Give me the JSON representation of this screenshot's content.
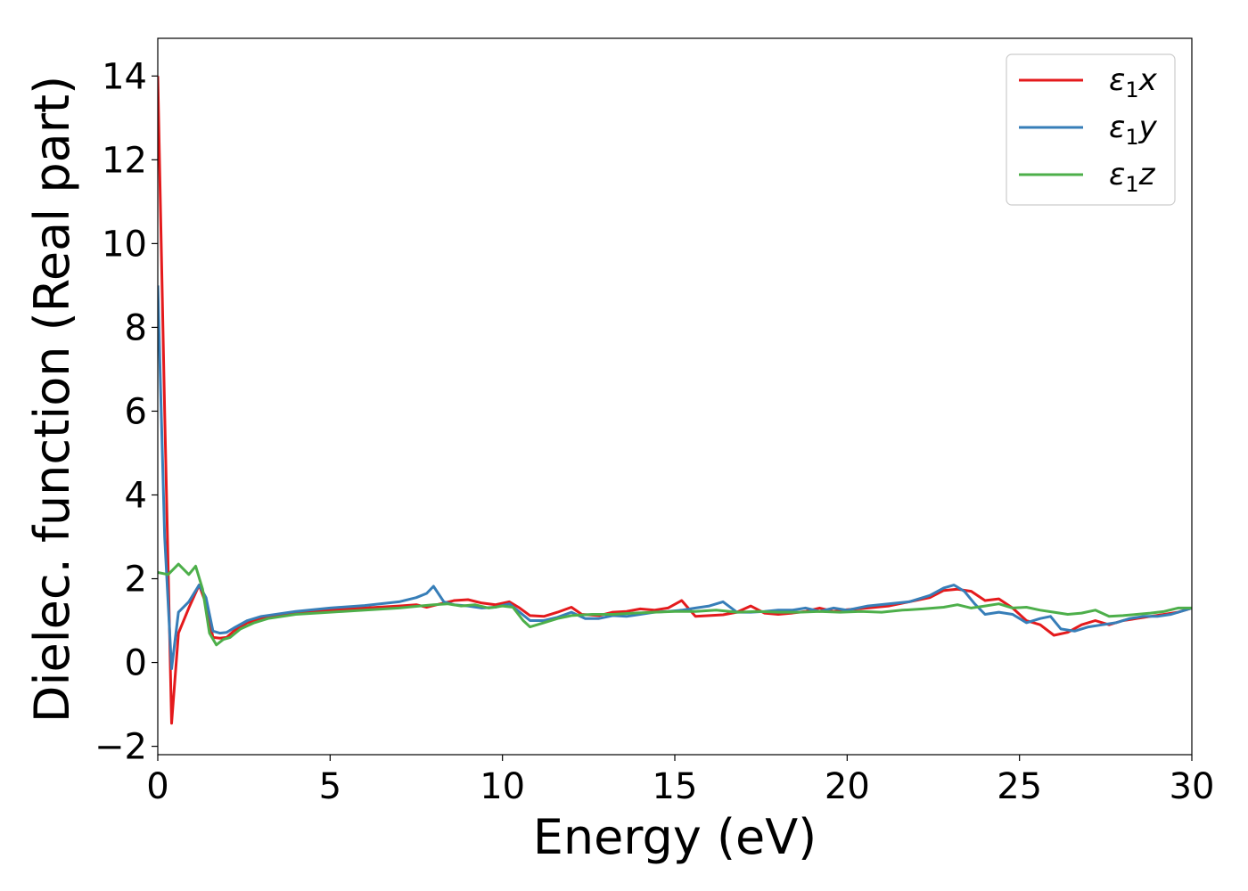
{
  "chart_data": {
    "type": "line",
    "xlabel": "Energy (eV)",
    "ylabel": "Dielec. function (Real part)",
    "xlim": [
      0,
      30
    ],
    "ylim": [
      -2.2,
      14.9
    ],
    "xticks": [
      0,
      5,
      10,
      15,
      20,
      25,
      30
    ],
    "yticks": [
      -2,
      0,
      2,
      4,
      6,
      8,
      10,
      12,
      14
    ],
    "grid": false,
    "legend_position": "top-right",
    "series": [
      {
        "name": "ε1x",
        "legend": {
          "symbol": "ε",
          "subscript": "1",
          "axis": "x"
        },
        "color": "#e41a1c",
        "x": [
          0,
          0.2,
          0.4,
          0.6,
          0.9,
          1.2,
          1.4,
          1.6,
          1.8,
          2.0,
          2.2,
          2.6,
          3.0,
          4.0,
          5.0,
          6.0,
          7.0,
          7.5,
          7.8,
          8.2,
          8.6,
          9.0,
          9.4,
          9.8,
          10.2,
          10.5,
          10.8,
          11.2,
          11.6,
          12.0,
          12.3,
          12.8,
          13.2,
          13.6,
          14.0,
          14.4,
          14.8,
          15.2,
          15.6,
          16.0,
          16.4,
          16.8,
          17.2,
          17.6,
          18.0,
          18.4,
          18.8,
          19.2,
          19.6,
          20.0,
          20.6,
          21.2,
          21.8,
          22.4,
          22.8,
          23.2,
          23.6,
          24.0,
          24.4,
          24.8,
          25.2,
          25.6,
          26.0,
          26.4,
          26.8,
          27.2,
          27.6,
          28.0,
          28.4,
          28.8,
          29.2,
          29.6,
          30.0
        ],
        "y": [
          14.0,
          6.0,
          -1.45,
          0.7,
          1.3,
          1.85,
          1.4,
          0.6,
          0.58,
          0.6,
          0.75,
          0.95,
          1.05,
          1.18,
          1.25,
          1.3,
          1.35,
          1.38,
          1.32,
          1.4,
          1.48,
          1.5,
          1.42,
          1.38,
          1.45,
          1.3,
          1.12,
          1.1,
          1.2,
          1.32,
          1.15,
          1.12,
          1.2,
          1.22,
          1.28,
          1.25,
          1.3,
          1.48,
          1.1,
          1.12,
          1.14,
          1.2,
          1.35,
          1.18,
          1.15,
          1.18,
          1.22,
          1.3,
          1.22,
          1.26,
          1.3,
          1.35,
          1.45,
          1.55,
          1.72,
          1.75,
          1.7,
          1.48,
          1.52,
          1.3,
          1.0,
          0.9,
          0.65,
          0.72,
          0.9,
          1.0,
          0.9,
          1.0,
          1.05,
          1.1,
          1.15,
          1.2,
          1.3
        ]
      },
      {
        "name": "ε1y",
        "legend": {
          "symbol": "ε",
          "subscript": "1",
          "axis": "y"
        },
        "color": "#377eb8",
        "x": [
          0,
          0.2,
          0.4,
          0.6,
          0.9,
          1.2,
          1.4,
          1.6,
          1.8,
          2.0,
          2.2,
          2.6,
          3.0,
          4.0,
          5.0,
          6.0,
          7.0,
          7.5,
          7.8,
          8.0,
          8.3,
          8.6,
          9.0,
          9.4,
          9.8,
          10.2,
          10.5,
          10.8,
          11.2,
          11.6,
          12.0,
          12.4,
          12.8,
          13.2,
          13.6,
          14.0,
          14.4,
          14.8,
          15.2,
          15.6,
          16.0,
          16.4,
          16.8,
          17.2,
          17.6,
          18.0,
          18.4,
          18.8,
          19.2,
          19.6,
          20.0,
          20.6,
          21.2,
          21.8,
          22.4,
          22.8,
          23.1,
          23.4,
          23.7,
          24.0,
          24.4,
          24.8,
          25.2,
          25.6,
          25.9,
          26.2,
          26.6,
          27.0,
          27.4,
          27.8,
          28.2,
          28.6,
          29.0,
          29.4,
          29.8,
          30.0
        ],
        "y": [
          9.0,
          3.0,
          -0.15,
          1.2,
          1.45,
          1.85,
          1.55,
          0.75,
          0.7,
          0.72,
          0.82,
          1.0,
          1.1,
          1.22,
          1.3,
          1.36,
          1.45,
          1.55,
          1.65,
          1.82,
          1.45,
          1.38,
          1.35,
          1.3,
          1.32,
          1.4,
          1.2,
          1.0,
          1.0,
          1.08,
          1.2,
          1.05,
          1.05,
          1.12,
          1.1,
          1.15,
          1.2,
          1.22,
          1.25,
          1.3,
          1.35,
          1.45,
          1.2,
          1.2,
          1.22,
          1.25,
          1.25,
          1.3,
          1.22,
          1.3,
          1.25,
          1.35,
          1.4,
          1.45,
          1.6,
          1.78,
          1.85,
          1.7,
          1.4,
          1.15,
          1.2,
          1.15,
          0.95,
          1.05,
          1.1,
          0.8,
          0.75,
          0.85,
          0.9,
          0.95,
          1.05,
          1.1,
          1.1,
          1.15,
          1.25,
          1.3
        ]
      },
      {
        "name": "ε1z",
        "legend": {
          "symbol": "ε",
          "subscript": "1",
          "axis": "z"
        },
        "color": "#4daf4a",
        "x": [
          0,
          0.3,
          0.6,
          0.9,
          1.1,
          1.3,
          1.5,
          1.7,
          1.9,
          2.1,
          2.4,
          2.8,
          3.2,
          4.0,
          5.0,
          6.0,
          7.0,
          7.6,
          8.0,
          8.4,
          8.8,
          9.2,
          9.6,
          10.0,
          10.3,
          10.6,
          10.8,
          11.2,
          11.6,
          12.0,
          12.6,
          13.2,
          13.8,
          14.4,
          15.0,
          15.6,
          16.2,
          16.8,
          17.4,
          18.0,
          18.6,
          19.2,
          19.8,
          20.4,
          21.0,
          21.6,
          22.2,
          22.8,
          23.2,
          23.6,
          24.0,
          24.4,
          24.8,
          25.2,
          25.6,
          26.0,
          26.4,
          26.8,
          27.2,
          27.6,
          28.0,
          28.4,
          28.8,
          29.2,
          29.6,
          30.0
        ],
        "y": [
          2.15,
          2.1,
          2.35,
          2.1,
          2.3,
          1.75,
          0.7,
          0.42,
          0.55,
          0.6,
          0.8,
          0.95,
          1.05,
          1.15,
          1.2,
          1.25,
          1.3,
          1.35,
          1.38,
          1.4,
          1.35,
          1.38,
          1.3,
          1.35,
          1.32,
          1.0,
          0.85,
          0.95,
          1.05,
          1.12,
          1.15,
          1.15,
          1.18,
          1.2,
          1.22,
          1.22,
          1.25,
          1.2,
          1.22,
          1.2,
          1.2,
          1.22,
          1.2,
          1.22,
          1.2,
          1.25,
          1.28,
          1.32,
          1.38,
          1.3,
          1.35,
          1.4,
          1.3,
          1.32,
          1.25,
          1.2,
          1.15,
          1.18,
          1.25,
          1.1,
          1.12,
          1.15,
          1.18,
          1.22,
          1.3,
          1.3
        ]
      }
    ]
  }
}
